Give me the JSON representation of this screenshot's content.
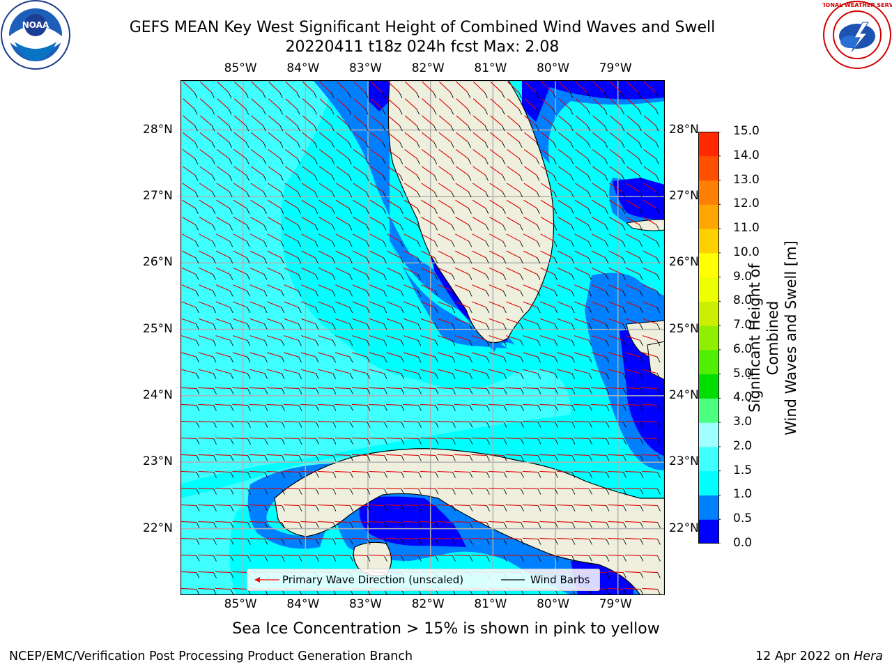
{
  "header": {
    "title_line1": "GEFS MEAN Key West Significant Height of Combined Wind Waves and Swell",
    "title_line2": "20220411 t18z 024h fcst   Max: 2.08"
  },
  "logos": {
    "left": "noaa-logo",
    "left_text": "NOAA",
    "right": "nws-logo",
    "right_text": "NATIONAL WEATHER SERVICE"
  },
  "map": {
    "lon_labels": [
      "85°W",
      "84°W",
      "83°W",
      "82°W",
      "81°W",
      "80°W",
      "79°W"
    ],
    "lat_labels": [
      "28°N",
      "27°N",
      "26°N",
      "25°N",
      "24°N",
      "23°N",
      "22°N"
    ],
    "extent": {
      "lon_min": -86.0,
      "lon_max": -78.25,
      "lat_min": 21.0,
      "lat_max": 28.75
    },
    "ocean_color": "#00ffff",
    "land_color": "#efefdd"
  },
  "colorbar": {
    "title": "Significant Height of Combined Wind Waves and Swell [m]",
    "title_line1": "Significant Height of Combined",
    "title_line2": "Wind Waves and Swell [m]",
    "labels": [
      "15.0",
      "14.0",
      "13.0",
      "12.0",
      "11.0",
      "10.0",
      "9.0",
      "8.0",
      "7.0",
      "6.0",
      "5.0",
      "4.0",
      "3.0",
      "2.0",
      "1.5",
      "1.0",
      "0.5",
      "0.0"
    ],
    "colors": [
      "#0000ff",
      "#0080ff",
      "#00ffff",
      "#40ffff",
      "#a0ffff",
      "#4dff80",
      "#00dd00",
      "#50ee00",
      "#90ee00",
      "#ccee00",
      "#eeff00",
      "#ffff00",
      "#ffd000",
      "#ffa500",
      "#ff8000",
      "#ff5000",
      "#ff2a00",
      "#ff0000"
    ]
  },
  "legend": {
    "wave_label": "Primary Wave Direction (unscaled)",
    "wind_label": "Wind Barbs",
    "wave_color": "#ff0000",
    "wind_color": "#000000"
  },
  "caption": "Sea Ice Concentration > 15% is shown in pink to yellow",
  "footer": {
    "left": "NCEP/EMC/Verification Post Processing Product Generation Branch",
    "right_date": "12 Apr 2022 on",
    "right_host": "Hera"
  }
}
